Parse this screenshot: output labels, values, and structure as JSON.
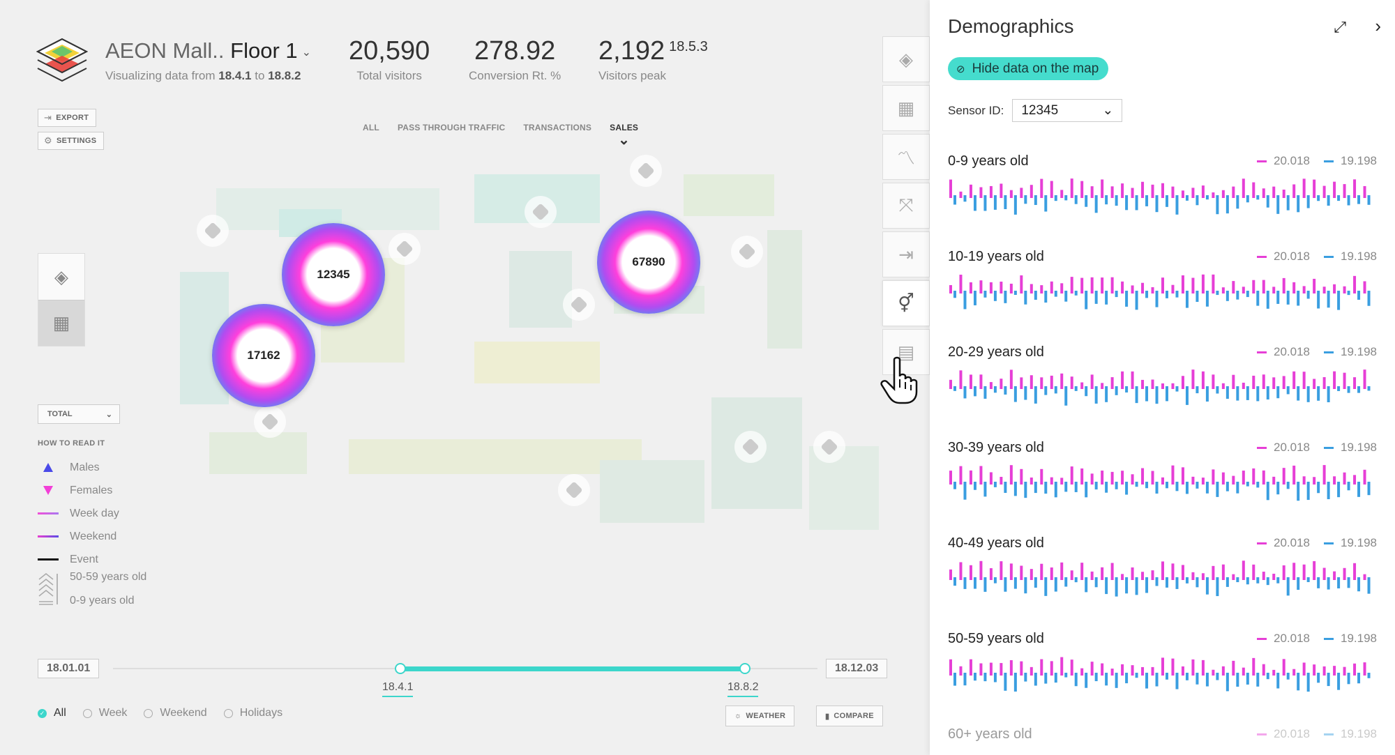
{
  "header": {
    "title_prefix": "AEON Mall..",
    "floor": "Floor 1",
    "subtitle_prefix": "Visualizing data from",
    "from": "18.4.1",
    "subtitle_mid": "to",
    "to": "18.8.2"
  },
  "kpis": [
    {
      "value": "20,590",
      "label": "Total visitors"
    },
    {
      "value": "278.92",
      "label": "Conversion Rt. %"
    },
    {
      "value": "2,192",
      "sup": "18.5.3",
      "label": "Visitors peak"
    }
  ],
  "actions": {
    "export": "EXPORT",
    "settings": "SETTINGS"
  },
  "filters": [
    "ALL",
    "PASS THROUGH TRAFFIC",
    "TRANSACTIONS",
    "SALES"
  ],
  "sensors": [
    {
      "id": "12345"
    },
    {
      "id": "17162"
    },
    {
      "id": "67890"
    }
  ],
  "total_select": "TOTAL",
  "legend": {
    "head": "HOW TO READ IT",
    "males": "Males",
    "females": "Females",
    "weekday": "Week day",
    "weekend": "Weekend",
    "event": "Event",
    "age_top": "50-59 years old",
    "age_bottom": "0-9 years old"
  },
  "timeline": {
    "start": "18.01.01",
    "end": "18.12.03",
    "from": "18.4.1",
    "to": "18.8.2"
  },
  "day_filters": [
    "All",
    "Week",
    "Weekend",
    "Holidays"
  ],
  "bottom_buttons": {
    "weather": "WEATHER",
    "compare": "COMPARE"
  },
  "panel": {
    "title": "Demographics",
    "hide_button": "Hide data on the map",
    "sensor_label": "Sensor ID:",
    "sensor_value": "12345",
    "legend_a": "20.018",
    "legend_b": "19.198",
    "color_a": "#e63fd6",
    "color_b": "#3a9ee0",
    "age_groups": [
      {
        "name": "0-9 years old"
      },
      {
        "name": "10-19 years old"
      },
      {
        "name": "20-29 years old"
      },
      {
        "name": "30-39 years old"
      },
      {
        "name": "40-49 years old"
      },
      {
        "name": "50-59 years old"
      },
      {
        "name": "60+ years old"
      }
    ]
  }
}
